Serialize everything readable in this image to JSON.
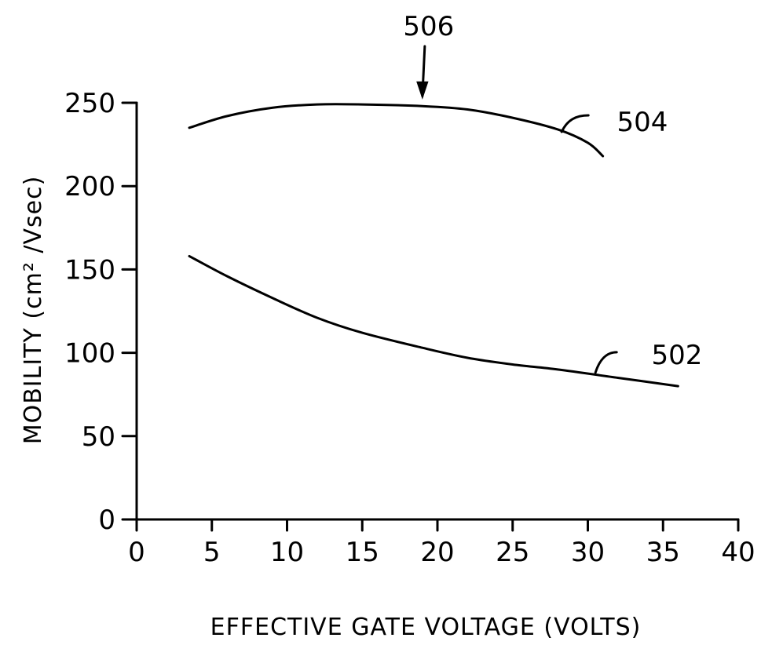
{
  "chart_data": {
    "type": "line",
    "xlabel": "EFFECTIVE GATE VOLTAGE (VOLTS)",
    "ylabel": "MOBILITY (cm² /Vsec)",
    "xlim": [
      0,
      40
    ],
    "ylim": [
      0,
      250
    ],
    "x_ticks": [
      "0",
      "5",
      "10",
      "15",
      "20",
      "25",
      "30",
      "35",
      "40"
    ],
    "y_ticks": [
      "0",
      "50",
      "100",
      "150",
      "200",
      "250"
    ],
    "grid": false,
    "series": [
      {
        "name": "504",
        "x": [
          3.5,
          6,
          9,
          12,
          15,
          19,
          22,
          25,
          28,
          30,
          31
        ],
        "y": [
          235,
          242,
          247,
          249,
          249,
          248,
          246,
          241,
          234,
          226,
          218
        ]
      },
      {
        "name": "502",
        "x": [
          3.5,
          6,
          9,
          12,
          15,
          19,
          22,
          25,
          28,
          32,
          36
        ],
        "y": [
          158,
          146,
          133,
          121,
          112,
          103,
          97,
          93,
          90,
          85,
          80
        ]
      }
    ],
    "annotations": [
      {
        "text": "506",
        "x": 19,
        "y": 248,
        "type": "arrow"
      },
      {
        "text": "504",
        "target_series": "504"
      },
      {
        "text": "502",
        "target_series": "502"
      }
    ]
  }
}
